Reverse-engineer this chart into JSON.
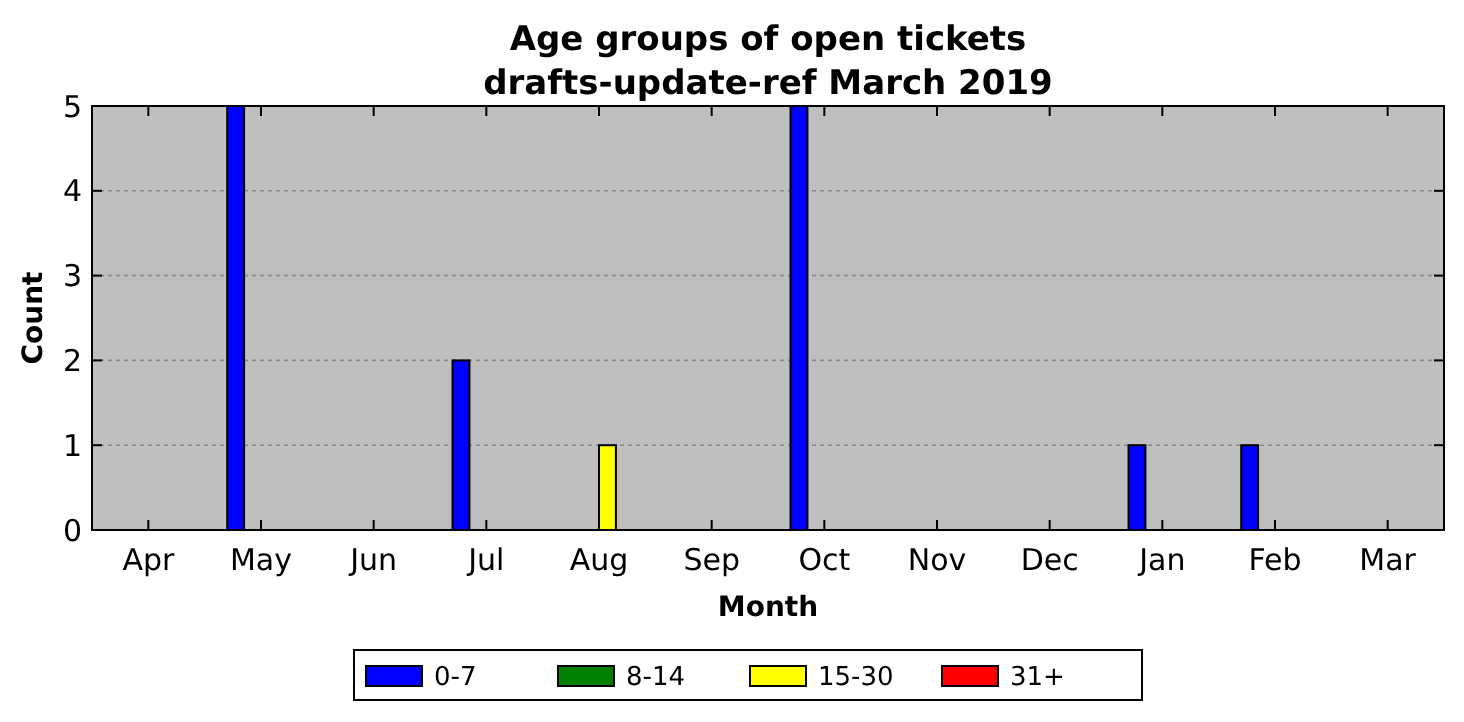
{
  "chart_data": {
    "type": "bar",
    "title": "Age groups of open tickets",
    "subtitle": "drafts-update-ref March 2019",
    "xlabel": "Month",
    "ylabel": "Count",
    "categories": [
      "Apr",
      "May",
      "Jun",
      "Jul",
      "Aug",
      "Sep",
      "Oct",
      "Nov",
      "Dec",
      "Jan",
      "Feb",
      "Mar"
    ],
    "series": [
      {
        "name": "0-7",
        "color": "#0000ff",
        "values": [
          0,
          5,
          0,
          2,
          0,
          0,
          5,
          0,
          0,
          1,
          1,
          0
        ]
      },
      {
        "name": "8-14",
        "color": "#008000",
        "values": [
          0,
          0,
          0,
          0,
          0,
          0,
          0,
          0,
          0,
          0,
          0,
          0
        ]
      },
      {
        "name": "15-30",
        "color": "#ffff00",
        "values": [
          0,
          0,
          0,
          0,
          1,
          0,
          0,
          0,
          0,
          0,
          0,
          0
        ]
      },
      {
        "name": "31+",
        "color": "#ff0000",
        "values": [
          0,
          0,
          0,
          0,
          0,
          0,
          0,
          0,
          0,
          0,
          0,
          0
        ]
      }
    ],
    "ylim": [
      0,
      5
    ],
    "yticks": [
      0,
      1,
      2,
      3,
      4,
      5
    ],
    "grid": "y",
    "legend": "bottom"
  }
}
